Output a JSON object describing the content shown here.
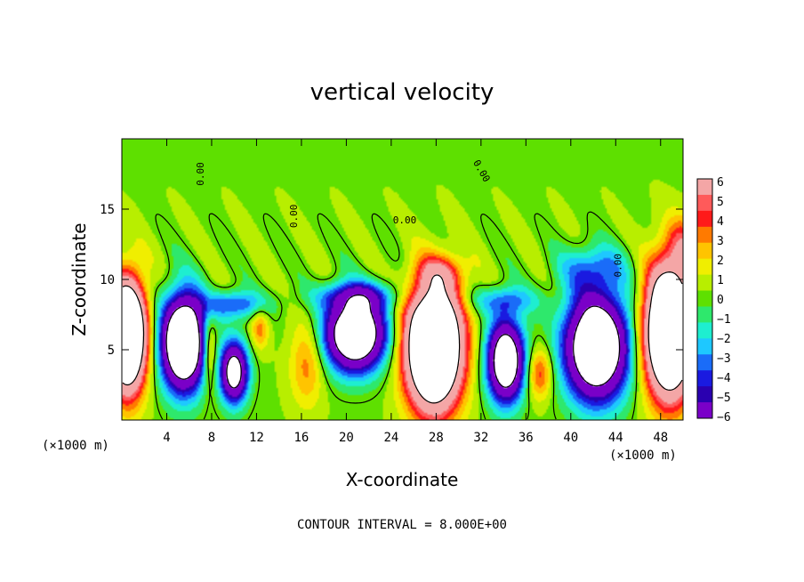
{
  "chart_data": {
    "type": "heatmap",
    "title": "vertical velocity",
    "xlabel": "X-coordinate",
    "ylabel": "Z-coordinate",
    "x_unit": "(×1000 m)",
    "z_unit": "(×1000 m)",
    "xlim": [
      0,
      50
    ],
    "zlim": [
      0,
      20
    ],
    "x_ticks": [
      4,
      8,
      12,
      16,
      20,
      24,
      28,
      32,
      36,
      40,
      44,
      48
    ],
    "z_ticks": [
      5,
      10,
      15
    ],
    "colorbar": {
      "ticks": [
        6,
        5,
        4,
        3,
        2,
        1,
        0,
        -1,
        -2,
        -3,
        -4,
        -5,
        -6
      ],
      "colors": [
        "#f4a6a6",
        "#ff5a5a",
        "#ff1a1a",
        "#ff7a00",
        "#ffc400",
        "#f0ee00",
        "#b8ee00",
        "#5ee000",
        "#2ee86c",
        "#1eeed0",
        "#1ec8ff",
        "#1a6cf8",
        "#1a1ae0",
        "#2a00b0",
        "#7a00c8"
      ]
    },
    "contour_interval_text": "CONTOUR INTERVAL = 8.000E+00",
    "contour_labels": [
      "0.00",
      "0.00",
      "0.00",
      "0.00",
      "0.00"
    ],
    "field": {
      "background": 0.3,
      "cells": [
        {
          "x": 0.5,
          "z": 6.0,
          "amp": 18,
          "sx": 1.6,
          "sz": 3.8
        },
        {
          "x": 5.5,
          "z": 5.5,
          "amp": -16,
          "sx": 1.9,
          "sz": 3.2
        },
        {
          "x": 7.8,
          "z": 5.0,
          "amp": 4,
          "sx": 0.7,
          "sz": 2.6
        },
        {
          "x": 10.0,
          "z": 3.4,
          "amp": -11,
          "sx": 1.2,
          "sz": 2.1
        },
        {
          "x": 12.3,
          "z": 6.6,
          "amp": 3,
          "sx": 0.8,
          "sz": 1.5
        },
        {
          "x": 16.5,
          "z": 4.0,
          "amp": 3,
          "sx": 1.5,
          "sz": 3.0
        },
        {
          "x": 20.8,
          "z": 6.1,
          "amp": -14,
          "sx": 2.6,
          "sz": 2.5
        },
        {
          "x": 27.8,
          "z": 5.2,
          "amp": 19,
          "sx": 2.4,
          "sz": 4.2
        },
        {
          "x": 34.2,
          "z": 4.2,
          "amp": -13,
          "sx": 1.6,
          "sz": 2.8
        },
        {
          "x": 37.2,
          "z": 3.3,
          "amp": 4,
          "sx": 1.1,
          "sz": 1.8
        },
        {
          "x": 42.3,
          "z": 5.2,
          "amp": -15,
          "sx": 2.7,
          "sz": 3.6
        },
        {
          "x": 48.8,
          "z": 6.3,
          "amp": 19,
          "sx": 2.1,
          "sz": 4.4
        },
        {
          "x": 10.0,
          "z": 8.2,
          "amp": -4,
          "sx": 3.0,
          "sz": 1.0
        },
        {
          "x": 21.0,
          "z": 8.8,
          "amp": -4,
          "sx": 3.5,
          "sz": 1.0
        },
        {
          "x": 34.0,
          "z": 8.5,
          "amp": -3,
          "sx": 3.0,
          "sz": 1.0
        },
        {
          "x": 42.0,
          "z": 10.8,
          "amp": -3,
          "sx": 3.0,
          "sz": 1.6
        },
        {
          "x": 28.5,
          "z": 10.5,
          "amp": 3,
          "sx": 2.0,
          "sz": 1.2
        },
        {
          "x": 50.0,
          "z": 12.5,
          "amp": 3,
          "sx": 1.5,
          "sz": 2.0
        }
      ]
    }
  }
}
